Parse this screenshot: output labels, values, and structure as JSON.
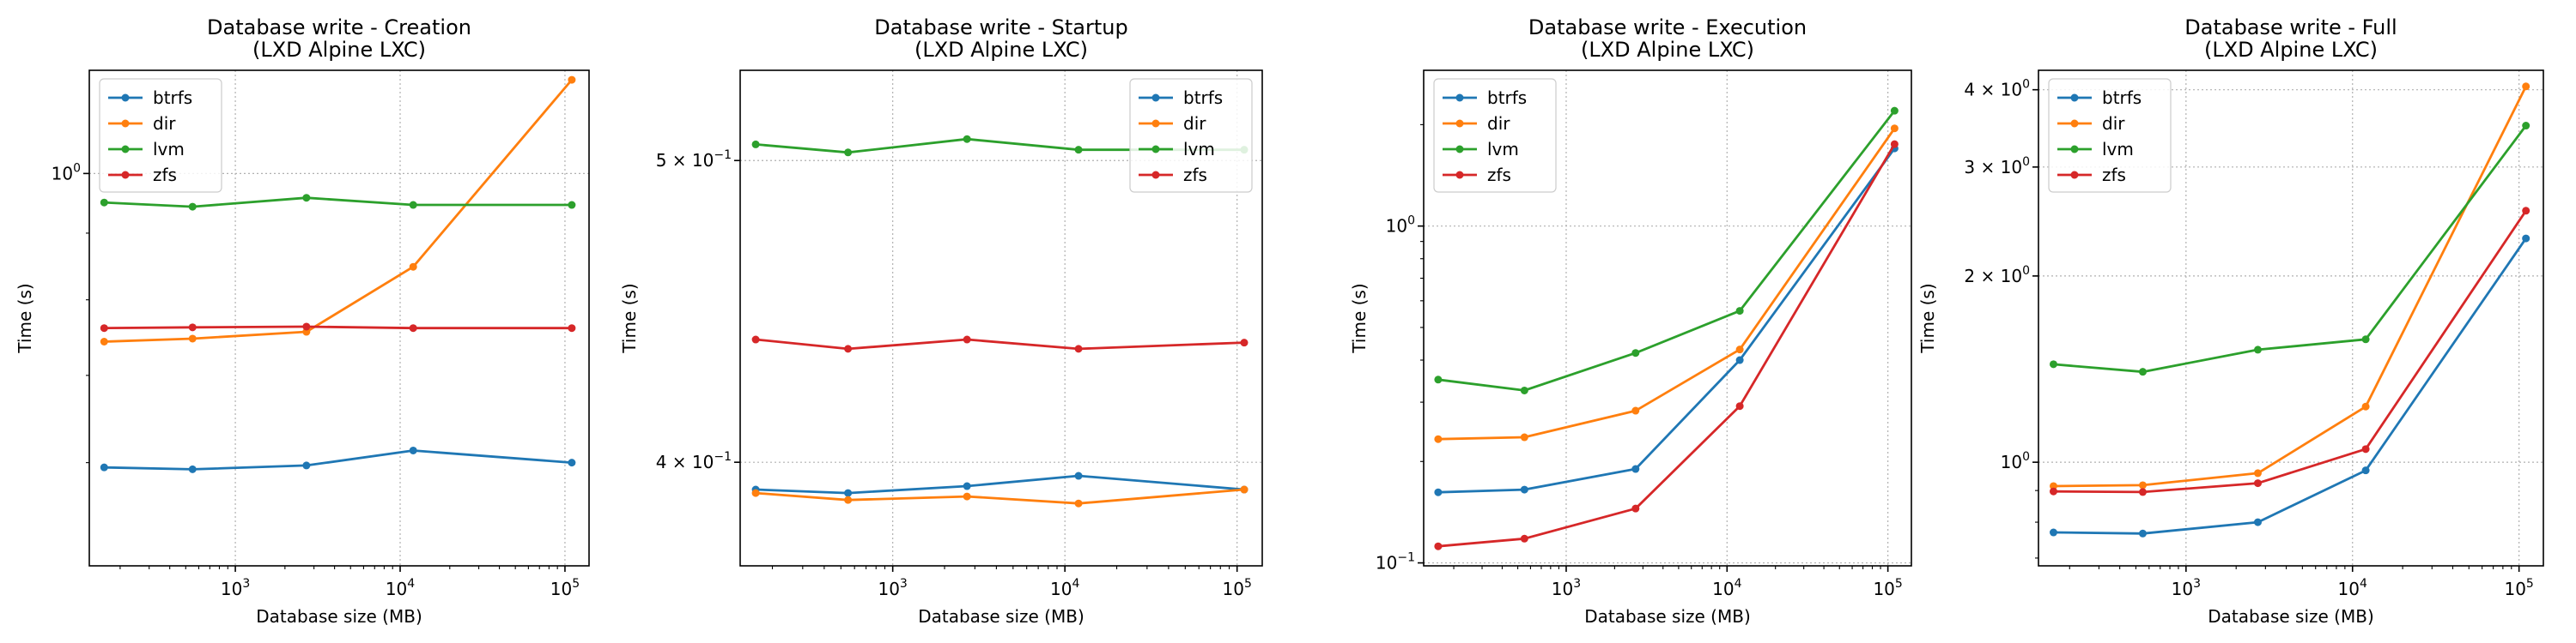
{
  "colors": {
    "btrfs": "#1f77b4",
    "dir": "#ff7f0e",
    "lvm": "#2ca02c",
    "zfs": "#d62728"
  },
  "chart_data": [
    {
      "type": "line",
      "title": "Database write - Creation",
      "subtitle": "(LXD Alpine LXC)",
      "xlabel": "Database size (MB)",
      "ylabel": "Time (s)",
      "xscale": "log",
      "yscale": "log",
      "xlim": [
        130,
        140000
      ],
      "ylim": [
        0.5,
        1.2
      ],
      "x_ticks": [
        {
          "value": 1000,
          "base": "10",
          "exp": "3"
        },
        {
          "value": 10000,
          "base": "10",
          "exp": "4"
        },
        {
          "value": 100000,
          "base": "10",
          "exp": "5"
        }
      ],
      "y_ticks": [
        {
          "value": 1.0,
          "base": "10",
          "exp": "0"
        }
      ],
      "grid": true,
      "legend": "upper-left",
      "x": [
        160,
        550,
        2700,
        12000,
        110000
      ],
      "series": [
        {
          "name": "btrfs",
          "values": [
            0.595,
            0.593,
            0.597,
            0.613,
            0.6
          ]
        },
        {
          "name": "dir",
          "values": [
            0.743,
            0.747,
            0.756,
            0.848,
            1.18
          ]
        },
        {
          "name": "lvm",
          "values": [
            0.95,
            0.943,
            0.958,
            0.946,
            0.946
          ]
        },
        {
          "name": "zfs",
          "values": [
            0.761,
            0.762,
            0.763,
            0.761,
            0.761
          ]
        }
      ]
    },
    {
      "type": "line",
      "title": "Database write - Startup",
      "subtitle": "(LXD Alpine LXC)",
      "xlabel": "Database size (MB)",
      "ylabel": "Time (s)",
      "xscale": "log",
      "yscale": "log",
      "xlim": [
        130,
        140000
      ],
      "ylim": [
        0.3705,
        0.5345
      ],
      "x_ticks": [
        {
          "value": 1000,
          "base": "10",
          "exp": "3"
        },
        {
          "value": 10000,
          "base": "10",
          "exp": "4"
        },
        {
          "value": 100000,
          "base": "10",
          "exp": "5"
        }
      ],
      "y_ticks": [
        {
          "value": 0.4,
          "base": "4 × 10",
          "exp": "−1"
        },
        {
          "value": 0.5,
          "base": "5 × 10",
          "exp": "−1"
        }
      ],
      "grid": true,
      "legend": "upper-right",
      "x": [
        160,
        550,
        2700,
        12000,
        110000
      ],
      "series": [
        {
          "name": "btrfs",
          "values": [
            0.392,
            0.391,
            0.393,
            0.396,
            0.392
          ]
        },
        {
          "name": "dir",
          "values": [
            0.391,
            0.389,
            0.39,
            0.388,
            0.392
          ]
        },
        {
          "name": "lvm",
          "values": [
            0.506,
            0.503,
            0.508,
            0.504,
            0.504
          ]
        },
        {
          "name": "zfs",
          "values": [
            0.438,
            0.435,
            0.438,
            0.435,
            0.437
          ]
        }
      ]
    },
    {
      "type": "line",
      "title": "Database write - Execution",
      "subtitle": "(LXD Alpine LXC)",
      "xlabel": "Database size (MB)",
      "ylabel": "Time (s)",
      "xscale": "log",
      "yscale": "log",
      "xlim": [
        130,
        140000
      ],
      "ylim": [
        0.098,
        2.9
      ],
      "x_ticks": [
        {
          "value": 1000,
          "base": "10",
          "exp": "3"
        },
        {
          "value": 10000,
          "base": "10",
          "exp": "4"
        },
        {
          "value": 100000,
          "base": "10",
          "exp": "5"
        }
      ],
      "y_ticks": [
        {
          "value": 0.1,
          "base": "10",
          "exp": "−1"
        },
        {
          "value": 1.0,
          "base": "10",
          "exp": "0"
        }
      ],
      "grid": true,
      "legend": "upper-left",
      "x": [
        160,
        550,
        2700,
        12000,
        110000
      ],
      "series": [
        {
          "name": "btrfs",
          "values": [
            0.162,
            0.165,
            0.19,
            0.4,
            1.7
          ]
        },
        {
          "name": "dir",
          "values": [
            0.233,
            0.236,
            0.283,
            0.43,
            1.95
          ]
        },
        {
          "name": "lvm",
          "values": [
            0.35,
            0.325,
            0.42,
            0.56,
            2.2
          ]
        },
        {
          "name": "zfs",
          "values": [
            0.112,
            0.118,
            0.145,
            0.292,
            1.75
          ]
        }
      ]
    },
    {
      "type": "line",
      "title": "Database write - Full",
      "subtitle": "(LXD Alpine LXC)",
      "xlabel": "Database size (MB)",
      "ylabel": "Time (s)",
      "xscale": "log",
      "yscale": "log",
      "xlim": [
        130,
        140000
      ],
      "ylim": [
        0.68,
        4.3
      ],
      "x_ticks": [
        {
          "value": 1000,
          "base": "10",
          "exp": "3"
        },
        {
          "value": 10000,
          "base": "10",
          "exp": "4"
        },
        {
          "value": 100000,
          "base": "10",
          "exp": "5"
        }
      ],
      "y_ticks": [
        {
          "value": 1.0,
          "base": "10",
          "exp": "0"
        },
        {
          "value": 2.0,
          "base": "2 × 10",
          "exp": "0"
        },
        {
          "value": 3.0,
          "base": "3 × 10",
          "exp": "0"
        },
        {
          "value": 4.0,
          "base": "4 × 10",
          "exp": "0"
        }
      ],
      "grid": true,
      "legend": "upper-left",
      "x": [
        160,
        550,
        2700,
        12000,
        110000
      ],
      "series": [
        {
          "name": "btrfs",
          "values": [
            0.77,
            0.767,
            0.8,
            0.97,
            2.3
          ]
        },
        {
          "name": "dir",
          "values": [
            0.915,
            0.918,
            0.96,
            1.23,
            4.05
          ]
        },
        {
          "name": "lvm",
          "values": [
            1.44,
            1.4,
            1.52,
            1.58,
            3.5
          ]
        },
        {
          "name": "zfs",
          "values": [
            0.897,
            0.895,
            0.925,
            1.05,
            2.55
          ]
        }
      ]
    }
  ]
}
